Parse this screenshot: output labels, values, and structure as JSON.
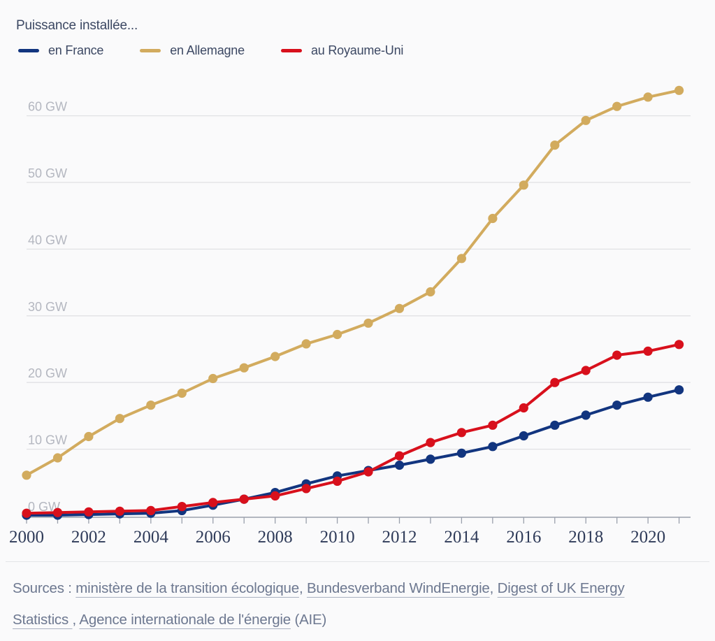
{
  "colors": {
    "background": "#fafafb",
    "grid": "#e0e1e4",
    "axis": "#9aa0ac",
    "y_label": "#b4b7c0",
    "x_label": "#2f3b59",
    "heading_text": "#3c4863",
    "sources_text": "#6d7890",
    "france": "#12357f",
    "germany": "#d2ab5e",
    "uk": "#d8101c"
  },
  "chart_data": {
    "type": "line",
    "title": "Puissance installée...",
    "unit": "GW",
    "legend_position": "top",
    "grid": "horizontal",
    "x": [
      2000,
      2001,
      2002,
      2003,
      2004,
      2005,
      2006,
      2007,
      2008,
      2009,
      2010,
      2011,
      2012,
      2013,
      2014,
      2015,
      2016,
      2017,
      2018,
      2019,
      2020,
      2021
    ],
    "x_tick_labels": [
      "2000",
      "2002",
      "2004",
      "2006",
      "2008",
      "2010",
      "2012",
      "2014",
      "2016",
      "2018",
      "2020"
    ],
    "y_ticks": [
      0,
      10,
      20,
      30,
      40,
      50,
      60
    ],
    "y_tick_suffix": " GW",
    "ylim": [
      0,
      64
    ],
    "series": [
      {
        "name": "en France",
        "color_key": "france",
        "values": [
          0.1,
          0.1,
          0.2,
          0.3,
          0.4,
          0.8,
          1.6,
          2.5,
          3.5,
          4.8,
          6.0,
          6.8,
          7.6,
          8.5,
          9.4,
          10.4,
          12.0,
          13.6,
          15.1,
          16.6,
          17.8,
          18.9
        ]
      },
      {
        "name": "en Allemagne",
        "color_key": "germany",
        "values": [
          6.1,
          8.7,
          11.9,
          14.6,
          16.6,
          18.4,
          20.6,
          22.2,
          23.9,
          25.8,
          27.2,
          28.9,
          31.1,
          33.6,
          38.6,
          44.6,
          49.6,
          55.6,
          59.3,
          61.4,
          62.8,
          63.8
        ]
      },
      {
        "name": "au Royaume-Uni",
        "color_key": "uk",
        "values": [
          0.4,
          0.5,
          0.6,
          0.7,
          0.8,
          1.4,
          2.0,
          2.5,
          3.0,
          4.1,
          5.2,
          6.6,
          9.0,
          11.0,
          12.5,
          13.6,
          16.2,
          20.0,
          21.8,
          24.1,
          24.7,
          25.7
        ]
      }
    ]
  },
  "footer": {
    "segments": [
      {
        "text": "Sources : ",
        "link": false
      },
      {
        "text": "ministère de la transition écologique",
        "link": true
      },
      {
        "text": ", ",
        "link": false
      },
      {
        "text": "Bundesverband WindEnergie",
        "link": true
      },
      {
        "text": ", ",
        "link": false
      },
      {
        "text": "Digest of UK Energy Statistics ",
        "link": true
      },
      {
        "text": ", ",
        "link": false
      },
      {
        "text": "Agence internationale de l'énergie",
        "link": true
      },
      {
        "text": " (AIE)",
        "link": false
      }
    ]
  }
}
